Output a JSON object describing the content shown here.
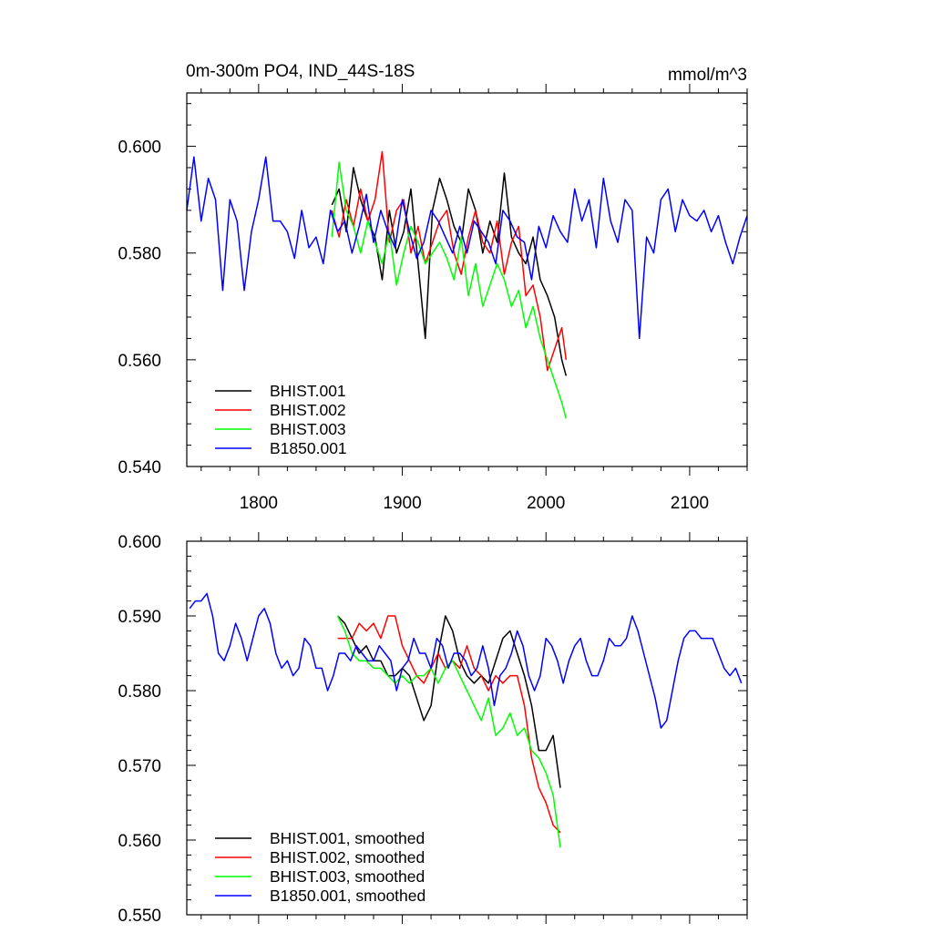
{
  "chart_data": [
    {
      "type": "line",
      "title": "0m-300m PO4, IND_44S-18S",
      "units": "mmol/m^3",
      "xlim": [
        1750,
        2140
      ],
      "ylim": [
        0.54,
        0.61
      ],
      "xticks": [
        1800,
        1900,
        2000,
        2100
      ],
      "xtick_labels": [
        "1800",
        "1900",
        "2000",
        "2100"
      ],
      "yticks": [
        0.54,
        0.56,
        0.58,
        0.6
      ],
      "ytick_labels": [
        "0.540",
        "0.560",
        "0.580",
        "0.600"
      ],
      "legend_position": "bottom-left",
      "series": [
        {
          "name": "BHIST.001",
          "color": "#000000",
          "x": [
            1851,
            1856,
            1861,
            1866,
            1871,
            1876,
            1881,
            1886,
            1891,
            1896,
            1901,
            1906,
            1911,
            1916,
            1921,
            1926,
            1931,
            1936,
            1941,
            1946,
            1951,
            1956,
            1961,
            1966,
            1971,
            1976,
            1981,
            1986,
            1991,
            1996,
            2001,
            2006,
            2011,
            2014
          ],
          "values": [
            0.589,
            0.592,
            0.584,
            0.596,
            0.59,
            0.586,
            0.583,
            0.575,
            0.588,
            0.58,
            0.584,
            0.592,
            0.578,
            0.564,
            0.588,
            0.594,
            0.59,
            0.585,
            0.582,
            0.592,
            0.588,
            0.58,
            0.586,
            0.582,
            0.595,
            0.583,
            0.58,
            0.578,
            0.583,
            0.575,
            0.572,
            0.568,
            0.56,
            0.557
          ]
        },
        {
          "name": "BHIST.002",
          "color": "#ff0000",
          "x": [
            1851,
            1856,
            1861,
            1866,
            1871,
            1876,
            1881,
            1886,
            1891,
            1896,
            1901,
            1906,
            1911,
            1916,
            1921,
            1926,
            1931,
            1936,
            1941,
            1946,
            1951,
            1956,
            1961,
            1966,
            1971,
            1976,
            1981,
            1986,
            1991,
            1996,
            2001,
            2006,
            2011,
            2014
          ],
          "values": [
            0.588,
            0.583,
            0.59,
            0.585,
            0.592,
            0.586,
            0.59,
            0.599,
            0.582,
            0.588,
            0.59,
            0.58,
            0.585,
            0.578,
            0.582,
            0.586,
            0.588,
            0.58,
            0.576,
            0.583,
            0.588,
            0.582,
            0.58,
            0.586,
            0.576,
            0.582,
            0.585,
            0.572,
            0.574,
            0.568,
            0.558,
            0.562,
            0.566,
            0.56
          ]
        },
        {
          "name": "BHIST.003",
          "color": "#00ff00",
          "x": [
            1851,
            1856,
            1861,
            1866,
            1871,
            1876,
            1881,
            1886,
            1891,
            1896,
            1901,
            1906,
            1911,
            1916,
            1921,
            1926,
            1931,
            1936,
            1941,
            1946,
            1951,
            1956,
            1961,
            1966,
            1971,
            1976,
            1981,
            1986,
            1991,
            1996,
            2001,
            2006,
            2011,
            2014
          ],
          "values": [
            0.583,
            0.597,
            0.588,
            0.585,
            0.58,
            0.586,
            0.582,
            0.578,
            0.584,
            0.574,
            0.58,
            0.585,
            0.582,
            0.578,
            0.58,
            0.582,
            0.579,
            0.575,
            0.583,
            0.572,
            0.578,
            0.57,
            0.574,
            0.578,
            0.575,
            0.57,
            0.573,
            0.566,
            0.57,
            0.564,
            0.56,
            0.556,
            0.552,
            0.549
          ]
        },
        {
          "name": "B1850.001",
          "color": "#0000ff",
          "x": [
            1750,
            1755,
            1760,
            1765,
            1770,
            1775,
            1780,
            1785,
            1790,
            1795,
            1800,
            1805,
            1810,
            1815,
            1820,
            1825,
            1830,
            1835,
            1840,
            1845,
            1850,
            1855,
            1860,
            1865,
            1870,
            1875,
            1880,
            1885,
            1890,
            1895,
            1900,
            1905,
            1910,
            1915,
            1920,
            1925,
            1930,
            1935,
            1940,
            1945,
            1950,
            1955,
            1960,
            1965,
            1970,
            1975,
            1980,
            1985,
            1990,
            1995,
            2000,
            2005,
            2010,
            2015,
            2020,
            2025,
            2030,
            2035,
            2040,
            2045,
            2050,
            2055,
            2060,
            2065,
            2070,
            2075,
            2080,
            2085,
            2090,
            2095,
            2100,
            2105,
            2110,
            2115,
            2120,
            2125,
            2130,
            2135,
            2140
          ],
          "values": [
            0.588,
            0.598,
            0.586,
            0.594,
            0.59,
            0.573,
            0.59,
            0.586,
            0.573,
            0.584,
            0.59,
            0.598,
            0.586,
            0.586,
            0.584,
            0.579,
            0.588,
            0.581,
            0.583,
            0.578,
            0.588,
            0.584,
            0.586,
            0.58,
            0.585,
            0.591,
            0.582,
            0.588,
            0.584,
            0.581,
            0.59,
            0.584,
            0.579,
            0.582,
            0.588,
            0.586,
            0.583,
            0.58,
            0.585,
            0.58,
            0.586,
            0.584,
            0.582,
            0.578,
            0.588,
            0.586,
            0.583,
            0.582,
            0.575,
            0.585,
            0.581,
            0.587,
            0.584,
            0.582,
            0.592,
            0.586,
            0.59,
            0.581,
            0.594,
            0.586,
            0.582,
            0.59,
            0.588,
            0.564,
            0.583,
            0.58,
            0.59,
            0.592,
            0.584,
            0.59,
            0.587,
            0.586,
            0.588,
            0.584,
            0.587,
            0.582,
            0.578,
            0.583,
            0.587
          ]
        }
      ]
    },
    {
      "type": "line",
      "title": "",
      "xlim": [
        1750,
        2140
      ],
      "ylim": [
        0.55,
        0.6
      ],
      "xticks": [
        1800,
        1900,
        2000,
        2100
      ],
      "yticks": [
        0.55,
        0.56,
        0.57,
        0.58,
        0.59,
        0.6
      ],
      "ytick_labels": [
        "0.550",
        "0.560",
        "0.570",
        "0.580",
        "0.590",
        "0.600"
      ],
      "legend_position": "bottom-left",
      "series": [
        {
          "name": "BHIST.001, smoothed",
          "color": "#000000",
          "x": [
            1855,
            1860,
            1865,
            1870,
            1875,
            1880,
            1885,
            1890,
            1895,
            1900,
            1905,
            1910,
            1915,
            1920,
            1925,
            1930,
            1935,
            1940,
            1945,
            1950,
            1955,
            1960,
            1965,
            1970,
            1975,
            1980,
            1985,
            1990,
            1995,
            2000,
            2005,
            2010
          ],
          "values": [
            0.59,
            0.589,
            0.587,
            0.585,
            0.586,
            0.584,
            0.584,
            0.582,
            0.582,
            0.583,
            0.582,
            0.579,
            0.576,
            0.578,
            0.585,
            0.59,
            0.588,
            0.584,
            0.582,
            0.581,
            0.582,
            0.581,
            0.584,
            0.587,
            0.588,
            0.585,
            0.582,
            0.578,
            0.572,
            0.572,
            0.574,
            0.567
          ]
        },
        {
          "name": "BHIST.002, smoothed",
          "color": "#ff0000",
          "x": [
            1855,
            1860,
            1865,
            1870,
            1875,
            1880,
            1885,
            1890,
            1895,
            1900,
            1905,
            1910,
            1915,
            1920,
            1925,
            1930,
            1935,
            1940,
            1945,
            1950,
            1955,
            1960,
            1965,
            1970,
            1975,
            1980,
            1985,
            1990,
            1995,
            2000,
            2005,
            2010
          ],
          "values": [
            0.587,
            0.587,
            0.587,
            0.589,
            0.588,
            0.589,
            0.587,
            0.59,
            0.59,
            0.586,
            0.584,
            0.582,
            0.581,
            0.583,
            0.585,
            0.583,
            0.584,
            0.583,
            0.586,
            0.583,
            0.582,
            0.58,
            0.582,
            0.581,
            0.582,
            0.582,
            0.578,
            0.571,
            0.567,
            0.565,
            0.562,
            0.561
          ]
        },
        {
          "name": "BHIST.003, smoothed",
          "color": "#00ff00",
          "x": [
            1855,
            1860,
            1865,
            1870,
            1875,
            1880,
            1885,
            1890,
            1895,
            1900,
            1905,
            1910,
            1915,
            1920,
            1925,
            1930,
            1935,
            1940,
            1945,
            1950,
            1955,
            1960,
            1965,
            1970,
            1975,
            1980,
            1985,
            1990,
            1995,
            2000,
            2005,
            2010
          ],
          "values": [
            0.59,
            0.588,
            0.585,
            0.584,
            0.584,
            0.583,
            0.583,
            0.582,
            0.581,
            0.582,
            0.581,
            0.582,
            0.582,
            0.583,
            0.581,
            0.583,
            0.584,
            0.582,
            0.58,
            0.578,
            0.576,
            0.579,
            0.574,
            0.575,
            0.577,
            0.574,
            0.575,
            0.572,
            0.571,
            0.569,
            0.566,
            0.559
          ]
        },
        {
          "name": "B1850.001, smoothed",
          "color": "#0000ff",
          "x": [
            1752,
            1756,
            1760,
            1764,
            1768,
            1772,
            1776,
            1780,
            1784,
            1788,
            1792,
            1796,
            1800,
            1804,
            1808,
            1812,
            1816,
            1820,
            1824,
            1828,
            1832,
            1836,
            1840,
            1844,
            1848,
            1852,
            1856,
            1860,
            1864,
            1868,
            1872,
            1876,
            1880,
            1884,
            1888,
            1892,
            1896,
            1900,
            1904,
            1908,
            1912,
            1916,
            1920,
            1924,
            1928,
            1932,
            1936,
            1940,
            1944,
            1948,
            1952,
            1956,
            1960,
            1964,
            1968,
            1972,
            1976,
            1980,
            1984,
            1988,
            1992,
            1996,
            2000,
            2004,
            2008,
            2012,
            2016,
            2020,
            2024,
            2028,
            2032,
            2036,
            2040,
            2044,
            2048,
            2052,
            2056,
            2060,
            2064,
            2068,
            2072,
            2076,
            2080,
            2084,
            2088,
            2092,
            2096,
            2100,
            2104,
            2108,
            2112,
            2116,
            2120,
            2124,
            2128,
            2132,
            2136
          ],
          "values": [
            0.591,
            0.592,
            0.592,
            0.593,
            0.59,
            0.585,
            0.584,
            0.586,
            0.589,
            0.587,
            0.584,
            0.587,
            0.59,
            0.591,
            0.589,
            0.585,
            0.583,
            0.584,
            0.582,
            0.583,
            0.587,
            0.586,
            0.583,
            0.583,
            0.58,
            0.582,
            0.585,
            0.585,
            0.584,
            0.586,
            0.585,
            0.584,
            0.584,
            0.586,
            0.585,
            0.584,
            0.58,
            0.583,
            0.584,
            0.587,
            0.585,
            0.585,
            0.583,
            0.587,
            0.586,
            0.583,
            0.585,
            0.585,
            0.584,
            0.582,
            0.583,
            0.586,
            0.583,
            0.578,
            0.582,
            0.583,
            0.585,
            0.588,
            0.586,
            0.582,
            0.58,
            0.582,
            0.587,
            0.586,
            0.584,
            0.581,
            0.584,
            0.586,
            0.587,
            0.584,
            0.582,
            0.582,
            0.584,
            0.587,
            0.586,
            0.586,
            0.587,
            0.59,
            0.588,
            0.585,
            0.582,
            0.579,
            0.575,
            0.576,
            0.58,
            0.584,
            0.587,
            0.588,
            0.588,
            0.587,
            0.587,
            0.587,
            0.585,
            0.583,
            0.582,
            0.583,
            0.581
          ]
        }
      ]
    }
  ]
}
